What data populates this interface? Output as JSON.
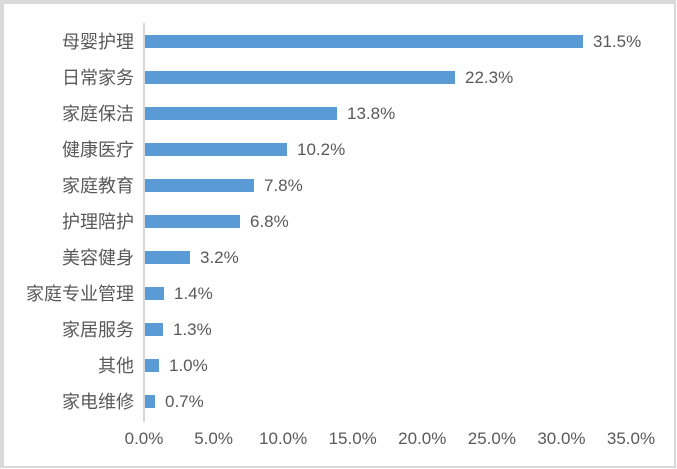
{
  "chart_data": {
    "type": "bar",
    "orientation": "horizontal",
    "title": "",
    "xlabel": "",
    "ylabel": "",
    "categories": [
      "母婴护理",
      "日常家务",
      "家庭保洁",
      "健康医疗",
      "家庭教育",
      "护理陪护",
      "美容健身",
      "家庭专业管理",
      "家居服务",
      "其他",
      "家电维修"
    ],
    "values": [
      31.5,
      22.3,
      13.8,
      10.2,
      7.8,
      6.8,
      3.2,
      1.4,
      1.3,
      1.0,
      0.7
    ],
    "value_labels": [
      "31.5%",
      "22.3%",
      "13.8%",
      "10.2%",
      "7.8%",
      "6.8%",
      "3.2%",
      "1.4%",
      "1.3%",
      "1.0%",
      "0.7%"
    ],
    "x_ticks": [
      "0.0%",
      "5.0%",
      "10.0%",
      "15.0%",
      "20.0%",
      "25.0%",
      "30.0%",
      "35.0%"
    ],
    "xlim": [
      0,
      35
    ],
    "grid": false,
    "legend": false,
    "data_labels": true,
    "bar_color": "#5b9bd5",
    "text_color": "#595959",
    "axis_line_color": "#d6d6d6"
  }
}
